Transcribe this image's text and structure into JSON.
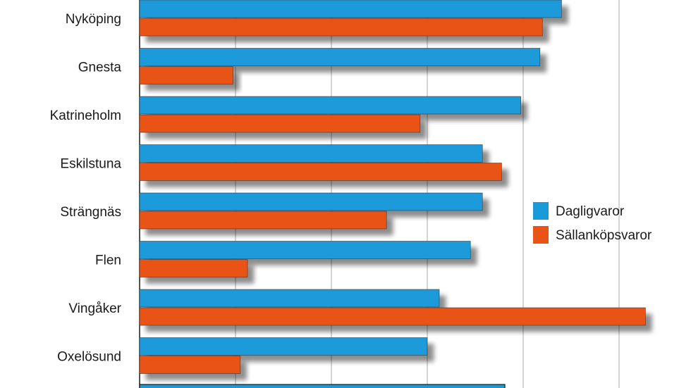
{
  "chart_data": {
    "type": "bar",
    "orientation": "horizontal",
    "title": "",
    "xlabel": "",
    "ylabel": "",
    "categories": [
      "Nyköping",
      "Gnesta",
      "Katrineholm",
      "Eskilstuna",
      "Strängnäs",
      "Flen",
      "Vingåker",
      "Oxelösund"
    ],
    "series": [
      {
        "name": "Dagligvaror",
        "color": "#1a9ad9",
        "values": [
          88,
          83.5,
          79.5,
          71.5,
          71.5,
          69,
          62.5,
          60
        ]
      },
      {
        "name": "Sällanköpsvaror",
        "color": "#ea5316",
        "values": [
          84,
          19.5,
          58.5,
          75.5,
          51.5,
          22.5,
          105.5,
          21
        ]
      }
    ],
    "xlim": [
      0,
      112
    ],
    "xticks_interval": 20,
    "grid": true,
    "legend_position": "right"
  }
}
